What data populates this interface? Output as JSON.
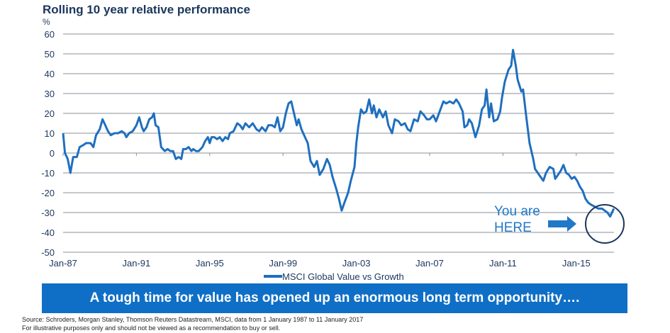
{
  "header": {
    "title": "Rolling 10 year relative performance",
    "unit": "%"
  },
  "annotation": {
    "line1": "You are",
    "line2": "HERE"
  },
  "banner": {
    "text": "A tough time for value has opened up an enormous long term opportunity…."
  },
  "footer": {
    "source": "Source: Schroders, Morgan Stanley, Thomson Reuters Datastream, MSCI, data from 1 January 1987 to 11 January 2017",
    "disclaimer": "For illustrative purposes only and should not be viewed as a recommendation to buy or sell."
  },
  "colors": {
    "series": "#1f6fbf",
    "grid": "#8a8f99",
    "circle": "#1b365d",
    "arrow": "#1f78c8",
    "banner": "#0f6fc6"
  },
  "chart_data": {
    "type": "line",
    "title": "Rolling 10 year relative performance",
    "ylabel": "%",
    "xlabel": "",
    "ylim": [
      -50,
      60
    ],
    "yticks": [
      60,
      50,
      40,
      30,
      20,
      10,
      0,
      -10,
      -20,
      -30,
      -40,
      -50
    ],
    "xlim": [
      1987,
      2017.1
    ],
    "xticks": [
      {
        "label": "Jan-87",
        "x": 1987
      },
      {
        "label": "Jan-91",
        "x": 1991
      },
      {
        "label": "Jan-95",
        "x": 1995
      },
      {
        "label": "Jan-99",
        "x": 1999
      },
      {
        "label": "Jan-03",
        "x": 2003
      },
      {
        "label": "Jan-07",
        "x": 2007
      },
      {
        "label": "Jan-11",
        "x": 2011
      },
      {
        "label": "Jan-15",
        "x": 2015
      }
    ],
    "grid": true,
    "legend": "bottom-center",
    "series": [
      {
        "name": "MSCI Global Value vs Growth",
        "points": [
          [
            1987.0,
            10
          ],
          [
            1987.1,
            0
          ],
          [
            1987.25,
            -3
          ],
          [
            1987.4,
            -10
          ],
          [
            1987.55,
            -2
          ],
          [
            1987.75,
            -2
          ],
          [
            1987.9,
            3
          ],
          [
            1988.1,
            4
          ],
          [
            1988.25,
            5
          ],
          [
            1988.5,
            5
          ],
          [
            1988.65,
            3
          ],
          [
            1988.8,
            9
          ],
          [
            1989.0,
            12
          ],
          [
            1989.15,
            17
          ],
          [
            1989.3,
            14
          ],
          [
            1989.45,
            11
          ],
          [
            1989.6,
            9
          ],
          [
            1989.8,
            10
          ],
          [
            1990.0,
            10
          ],
          [
            1990.2,
            11
          ],
          [
            1990.35,
            10
          ],
          [
            1990.45,
            8
          ],
          [
            1990.6,
            10
          ],
          [
            1990.8,
            11
          ],
          [
            1991.0,
            14
          ],
          [
            1991.15,
            18
          ],
          [
            1991.3,
            13
          ],
          [
            1991.4,
            11
          ],
          [
            1991.55,
            13
          ],
          [
            1991.7,
            17
          ],
          [
            1991.85,
            18
          ],
          [
            1991.95,
            20
          ],
          [
            1992.05,
            14
          ],
          [
            1992.2,
            13
          ],
          [
            1992.35,
            3
          ],
          [
            1992.55,
            1
          ],
          [
            1992.7,
            2
          ],
          [
            1992.85,
            1
          ],
          [
            1993.0,
            1
          ],
          [
            1993.15,
            -3
          ],
          [
            1993.3,
            -2
          ],
          [
            1993.45,
            -3
          ],
          [
            1993.55,
            2
          ],
          [
            1993.7,
            2
          ],
          [
            1993.85,
            3
          ],
          [
            1994.0,
            1
          ],
          [
            1994.1,
            2
          ],
          [
            1994.25,
            1
          ],
          [
            1994.4,
            1
          ],
          [
            1994.6,
            3
          ],
          [
            1994.75,
            6
          ],
          [
            1994.9,
            8
          ],
          [
            1995.0,
            5
          ],
          [
            1995.1,
            8
          ],
          [
            1995.25,
            8
          ],
          [
            1995.4,
            7
          ],
          [
            1995.55,
            8
          ],
          [
            1995.7,
            6
          ],
          [
            1995.85,
            8
          ],
          [
            1996.0,
            7
          ],
          [
            1996.1,
            10
          ],
          [
            1996.3,
            11
          ],
          [
            1996.5,
            15
          ],
          [
            1996.65,
            14
          ],
          [
            1996.8,
            12
          ],
          [
            1996.95,
            15
          ],
          [
            1997.15,
            13
          ],
          [
            1997.35,
            15
          ],
          [
            1997.55,
            12
          ],
          [
            1997.7,
            11
          ],
          [
            1997.85,
            13
          ],
          [
            1998.05,
            11
          ],
          [
            1998.2,
            14
          ],
          [
            1998.4,
            14
          ],
          [
            1998.55,
            13
          ],
          [
            1998.7,
            18
          ],
          [
            1998.85,
            11
          ],
          [
            1999.0,
            13
          ],
          [
            1999.15,
            20
          ],
          [
            1999.3,
            25
          ],
          [
            1999.45,
            26
          ],
          [
            1999.6,
            20
          ],
          [
            1999.75,
            14
          ],
          [
            1999.85,
            17
          ],
          [
            2000.0,
            12
          ],
          [
            2000.2,
            8
          ],
          [
            2000.35,
            5
          ],
          [
            2000.5,
            -4
          ],
          [
            2000.7,
            -7
          ],
          [
            2000.85,
            -4
          ],
          [
            2001.0,
            -11
          ],
          [
            2001.2,
            -8
          ],
          [
            2001.4,
            -3
          ],
          [
            2001.55,
            -6
          ],
          [
            2001.7,
            -12
          ],
          [
            2001.9,
            -18
          ],
          [
            2002.05,
            -23
          ],
          [
            2002.2,
            -29
          ],
          [
            2002.35,
            -25
          ],
          [
            2002.55,
            -20
          ],
          [
            2002.7,
            -14
          ],
          [
            2002.9,
            -7
          ],
          [
            2003.0,
            5
          ],
          [
            2003.1,
            13
          ],
          [
            2003.25,
            22
          ],
          [
            2003.4,
            20
          ],
          [
            2003.55,
            21
          ],
          [
            2003.7,
            27
          ],
          [
            2003.85,
            20
          ],
          [
            2003.95,
            24
          ],
          [
            2004.1,
            18
          ],
          [
            2004.25,
            22
          ],
          [
            2004.45,
            18
          ],
          [
            2004.6,
            21
          ],
          [
            2004.75,
            14
          ],
          [
            2004.95,
            10
          ],
          [
            2005.1,
            17
          ],
          [
            2005.3,
            16
          ],
          [
            2005.45,
            14
          ],
          [
            2005.65,
            15
          ],
          [
            2005.8,
            12
          ],
          [
            2005.95,
            11
          ],
          [
            2006.15,
            17
          ],
          [
            2006.35,
            16
          ],
          [
            2006.5,
            21
          ],
          [
            2006.7,
            19
          ],
          [
            2006.85,
            17
          ],
          [
            2007.0,
            17
          ],
          [
            2007.2,
            19
          ],
          [
            2007.35,
            16
          ],
          [
            2007.55,
            21
          ],
          [
            2007.75,
            26
          ],
          [
            2007.9,
            25
          ],
          [
            2008.1,
            26
          ],
          [
            2008.3,
            25
          ],
          [
            2008.45,
            27
          ],
          [
            2008.6,
            25
          ],
          [
            2008.8,
            21
          ],
          [
            2008.9,
            13
          ],
          [
            2009.05,
            14
          ],
          [
            2009.15,
            17
          ],
          [
            2009.3,
            15
          ],
          [
            2009.5,
            8
          ],
          [
            2009.7,
            14
          ],
          [
            2009.85,
            22
          ],
          [
            2010.0,
            24
          ],
          [
            2010.1,
            32
          ],
          [
            2010.25,
            18
          ],
          [
            2010.35,
            25
          ],
          [
            2010.5,
            16
          ],
          [
            2010.7,
            17
          ],
          [
            2010.85,
            21
          ],
          [
            2010.95,
            28
          ],
          [
            2011.1,
            36
          ],
          [
            2011.3,
            42
          ],
          [
            2011.45,
            44
          ],
          [
            2011.55,
            52
          ],
          [
            2011.7,
            44
          ],
          [
            2011.8,
            37
          ],
          [
            2011.9,
            34
          ],
          [
            2012.0,
            31
          ],
          [
            2012.1,
            32
          ],
          [
            2012.25,
            20
          ],
          [
            2012.45,
            5
          ],
          [
            2012.55,
            1
          ],
          [
            2012.65,
            -3
          ],
          [
            2012.75,
            -8
          ],
          [
            2012.9,
            -10
          ],
          [
            2013.05,
            -12
          ],
          [
            2013.2,
            -14
          ],
          [
            2013.35,
            -10
          ],
          [
            2013.55,
            -7
          ],
          [
            2013.75,
            -8
          ],
          [
            2013.85,
            -13
          ],
          [
            2014.0,
            -11
          ],
          [
            2014.15,
            -9
          ],
          [
            2014.3,
            -6
          ],
          [
            2014.45,
            -10
          ],
          [
            2014.6,
            -11
          ],
          [
            2014.75,
            -13
          ],
          [
            2014.9,
            -12
          ],
          [
            2015.05,
            -14
          ],
          [
            2015.2,
            -17
          ],
          [
            2015.35,
            -19
          ],
          [
            2015.5,
            -23
          ],
          [
            2015.65,
            -25
          ],
          [
            2015.8,
            -26
          ],
          [
            2016.0,
            -27
          ],
          [
            2016.2,
            -28
          ],
          [
            2016.4,
            -28
          ],
          [
            2016.55,
            -29
          ],
          [
            2016.7,
            -30
          ],
          [
            2016.85,
            -32
          ],
          [
            2016.95,
            -30
          ],
          [
            2017.05,
            -28
          ]
        ]
      }
    ]
  }
}
